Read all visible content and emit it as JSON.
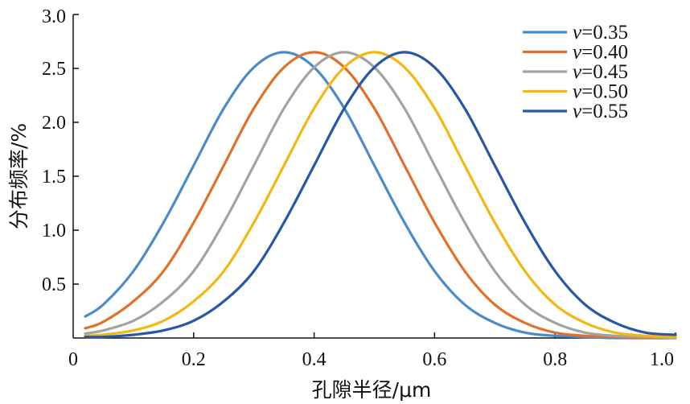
{
  "chart_data": {
    "type": "line",
    "xlabel": "孔隙半径/μm",
    "ylabel": "分布频率/%",
    "xlim": [
      0,
      1.0
    ],
    "ylim": [
      0,
      3.0
    ],
    "x_ticks": [
      "0",
      "0.2",
      "0.4",
      "0.6",
      "0.8",
      "1.0"
    ],
    "y_ticks": [
      "0.5",
      "1.0",
      "1.5",
      "2.0",
      "2.5",
      "3.0"
    ],
    "legend_position": "top-right",
    "x": [
      0.02,
      0.05,
      0.1,
      0.15,
      0.2,
      0.25,
      0.3,
      0.35,
      0.4,
      0.45,
      0.5,
      0.55,
      0.6,
      0.65,
      0.7,
      0.75,
      0.8,
      0.85,
      0.9,
      0.95,
      1.0
    ],
    "series": [
      {
        "name": "v=0.35",
        "legend_prefix": "v",
        "legend_value": "=0.35",
        "color": "#4A8CC9",
        "values": [
          0.2,
          0.31,
          0.62,
          1.07,
          1.6,
          2.13,
          2.51,
          2.65,
          2.51,
          2.13,
          1.6,
          1.07,
          0.62,
          0.31,
          0.14,
          0.05,
          0.02,
          0.01,
          0.0,
          0.0,
          0.0
        ]
      },
      {
        "name": "v=0.40",
        "legend_prefix": "v",
        "legend_value": "=0.40",
        "color": "#E0712A",
        "values": [
          0.09,
          0.15,
          0.34,
          0.62,
          1.07,
          1.6,
          2.13,
          2.51,
          2.65,
          2.51,
          2.13,
          1.6,
          1.07,
          0.62,
          0.31,
          0.14,
          0.05,
          0.02,
          0.01,
          0.0,
          0.0
        ]
      },
      {
        "name": "v=0.45",
        "legend_prefix": "v",
        "legend_value": "=0.45",
        "color": "#A3A3A3",
        "values": [
          0.04,
          0.07,
          0.16,
          0.34,
          0.62,
          1.07,
          1.6,
          2.13,
          2.51,
          2.65,
          2.51,
          2.13,
          1.6,
          1.07,
          0.62,
          0.31,
          0.14,
          0.05,
          0.02,
          0.01,
          0.0
        ]
      },
      {
        "name": "v=0.50",
        "legend_prefix": "v",
        "legend_value": "=0.50",
        "color": "#F2B811",
        "values": [
          0.02,
          0.03,
          0.07,
          0.16,
          0.34,
          0.62,
          1.07,
          1.6,
          2.13,
          2.51,
          2.65,
          2.51,
          2.13,
          1.6,
          1.07,
          0.62,
          0.31,
          0.14,
          0.05,
          0.02,
          0.01
        ]
      },
      {
        "name": "v=0.55",
        "legend_prefix": "v",
        "legend_value": "=0.55",
        "color": "#2757A6",
        "values": [
          0.01,
          0.01,
          0.03,
          0.07,
          0.16,
          0.34,
          0.62,
          1.07,
          1.6,
          2.13,
          2.51,
          2.65,
          2.51,
          2.13,
          1.6,
          1.07,
          0.62,
          0.31,
          0.14,
          0.05,
          0.03
        ]
      }
    ]
  }
}
